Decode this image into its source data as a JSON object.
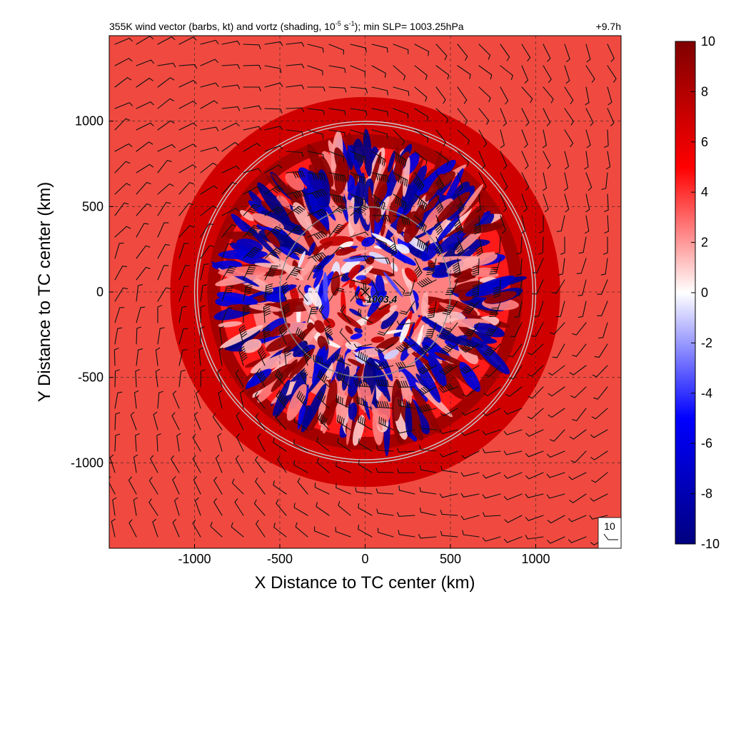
{
  "chart_data": {
    "type": "heatmap",
    "title": "355K wind vector (barbs, kt) and vortz (shading, 10⁻⁵ s⁻¹); min SLP= 1003.25hPa",
    "title_parts": {
      "prefix": "355K wind vector (barbs, kt) and vortz (shading, 10",
      "sup1": "-5",
      "mid": " s",
      "sup2": "-1",
      "suffix": "); min SLP= 1003.25hPa"
    },
    "time_label": "+9.7h",
    "xlabel": "X Distance to TC center (km)",
    "ylabel": "Y Distance to TC center (km)",
    "xlim": [
      -1500,
      1500
    ],
    "ylim": [
      -1500,
      1500
    ],
    "xticks": [
      -1000,
      -500,
      0,
      500,
      1000
    ],
    "yticks": [
      -1000,
      -500,
      0,
      500,
      1000
    ],
    "grid": true,
    "range_rings_km": [
      500,
      1000
    ],
    "center_marker": {
      "x": 0,
      "y": 0,
      "label": "1003.4"
    },
    "barb_legend": {
      "value_kt": 10,
      "label": "10"
    },
    "colorbar": {
      "min": -10,
      "max": 10,
      "ticks": [
        10,
        8,
        6,
        4,
        2,
        0,
        -2,
        -4,
        -6,
        -8,
        -10
      ],
      "colormap": [
        "#00007f",
        "#0000ff",
        "#ffffff",
        "#ff0000",
        "#7f0000"
      ],
      "placement": "right"
    },
    "field_description": {
      "background_value": 5.5,
      "core_radius_km": 500,
      "rainband_outer_radius_km": 850,
      "rings_color": "#c8c8c8"
    }
  }
}
